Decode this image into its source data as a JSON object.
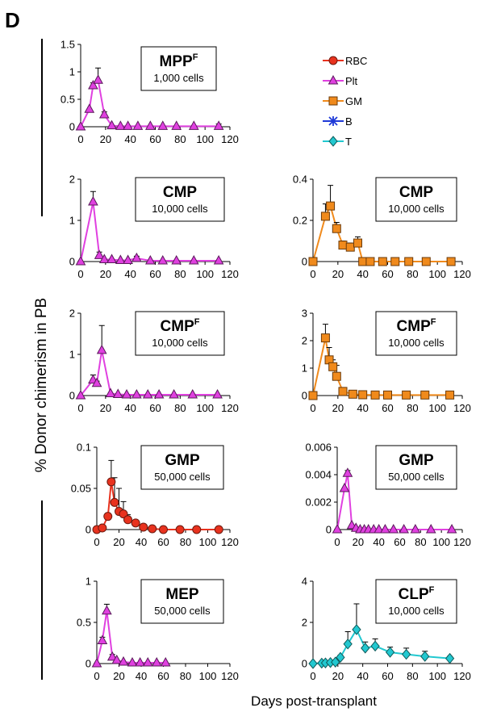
{
  "panel_label": "D",
  "ylabel": "% Donor chimerism in PB",
  "xlabel": "Days post-transplant",
  "legend": [
    {
      "name": "RBC",
      "color": "#e8321e",
      "marker": "circle"
    },
    {
      "name": "Plt",
      "color": "#e040e0",
      "marker": "triangle"
    },
    {
      "name": "GM",
      "color": "#f08a1c",
      "marker": "square"
    },
    {
      "name": "B",
      "color": "#1f3ad8",
      "marker": "star"
    },
    {
      "name": "T",
      "color": "#22c8d0",
      "marker": "diamond"
    }
  ],
  "chart_data": [
    {
      "type": "line",
      "box_title": "MPP",
      "box_sup": "F",
      "box_sub": "1,000 cells",
      "ylim": [
        0,
        1.5
      ],
      "yticks": [
        "0",
        "0.5",
        "1",
        "1.5"
      ],
      "xlim": [
        0,
        120
      ],
      "xticks": [
        0,
        20,
        40,
        60,
        80,
        100,
        120
      ],
      "series": [
        {
          "name": "Plt",
          "color": "#e040e0",
          "marker": "triangle",
          "x": [
            0,
            7,
            10,
            14,
            19,
            25,
            32,
            38,
            46,
            56,
            66,
            77,
            91,
            111
          ],
          "y": [
            0,
            0.32,
            0.75,
            0.85,
            0.22,
            0.02,
            0.01,
            0.01,
            0.01,
            0.01,
            0.01,
            0.01,
            0.01,
            0.01
          ],
          "err": [
            0,
            0,
            0.05,
            0.22,
            0.05,
            0,
            0,
            0,
            0,
            0,
            0,
            0,
            0,
            0.04
          ]
        }
      ]
    },
    {
      "type": "line",
      "box_title": "CMP",
      "box_sup": "",
      "box_sub": "10,000 cells",
      "ylim": [
        0,
        2
      ],
      "yticks": [
        "0",
        "1",
        "2"
      ],
      "xlim": [
        0,
        120
      ],
      "xticks": [
        0,
        20,
        40,
        60,
        80,
        100,
        120
      ],
      "series": [
        {
          "name": "Plt",
          "color": "#e040e0",
          "marker": "triangle",
          "x": [
            0,
            10,
            15,
            19,
            25,
            32,
            38,
            45,
            56,
            66,
            77,
            91,
            111
          ],
          "y": [
            0,
            1.45,
            0.15,
            0.05,
            0.05,
            0.03,
            0.03,
            0.08,
            0.02,
            0.02,
            0.02,
            0.02,
            0.02
          ],
          "err": [
            0,
            0.25,
            0.08,
            0,
            0,
            0,
            0,
            0.05,
            0,
            0,
            0,
            0,
            0
          ]
        }
      ]
    },
    {
      "type": "line",
      "box_title": "CMP",
      "box_sup": "",
      "box_sub": "10,000 cells",
      "ylim": [
        0,
        0.4
      ],
      "yticks": [
        "0",
        "0.2",
        "0.4"
      ],
      "xlim": [
        0,
        120
      ],
      "xticks": [
        0,
        20,
        40,
        60,
        80,
        100,
        120
      ],
      "series": [
        {
          "name": "GM",
          "color": "#f08a1c",
          "marker": "square",
          "x": [
            0,
            10,
            14,
            19,
            24,
            30,
            36,
            40,
            46,
            56,
            66,
            77,
            91,
            111
          ],
          "y": [
            0,
            0.22,
            0.27,
            0.16,
            0.08,
            0.07,
            0.09,
            0.0,
            0.0,
            0.0,
            0.0,
            0.0,
            0.0,
            0.0
          ],
          "err": [
            0,
            0.06,
            0.1,
            0.03,
            0.02,
            0.02,
            0.03,
            0,
            0,
            0,
            0,
            0,
            0,
            0
          ]
        }
      ]
    },
    {
      "type": "line",
      "box_title": "CMP",
      "box_sup": "F",
      "box_sub": "10,000 cells",
      "ylim": [
        0,
        2
      ],
      "yticks": [
        "0",
        "1",
        "2"
      ],
      "xlim": [
        0,
        120
      ],
      "xticks": [
        0,
        20,
        40,
        60,
        80,
        100,
        120
      ],
      "series": [
        {
          "name": "Plt",
          "color": "#e040e0",
          "marker": "triangle",
          "x": [
            0,
            10,
            13,
            17,
            24,
            30,
            37,
            45,
            54,
            63,
            75,
            90,
            110
          ],
          "y": [
            0,
            0.38,
            0.3,
            1.1,
            0.05,
            0.03,
            0.02,
            0.02,
            0.02,
            0.02,
            0.02,
            0.02,
            0.02
          ],
          "err": [
            0,
            0.12,
            0.05,
            0.6,
            0,
            0,
            0,
            0,
            0,
            0,
            0,
            0,
            0
          ]
        }
      ]
    },
    {
      "type": "line",
      "box_title": "CMP",
      "box_sup": "F",
      "box_sub": "10,000 cells",
      "ylim": [
        0,
        3
      ],
      "yticks": [
        "0",
        "1",
        "2",
        "3"
      ],
      "xlim": [
        0,
        120
      ],
      "xticks": [
        0,
        20,
        40,
        60,
        80,
        100,
        120
      ],
      "series": [
        {
          "name": "GM",
          "color": "#f08a1c",
          "marker": "square",
          "x": [
            0,
            10,
            13,
            16,
            19,
            24,
            32,
            40,
            50,
            60,
            75,
            90,
            110
          ],
          "y": [
            0,
            2.1,
            1.3,
            1.05,
            0.7,
            0.15,
            0.05,
            0.03,
            0.02,
            0.02,
            0.02,
            0.02,
            0.02
          ],
          "err": [
            0,
            0.5,
            0.45,
            0.25,
            0.4,
            0.1,
            0,
            0,
            0,
            0,
            0,
            0,
            0
          ]
        }
      ]
    },
    {
      "type": "line",
      "box_title": "GMP",
      "box_sup": "",
      "box_sub": "50,000 cells",
      "ylim": [
        0,
        0.1
      ],
      "yticks": [
        "0",
        "0.05",
        "0.1"
      ],
      "xlim": [
        0,
        120
      ],
      "xticks": [
        0,
        20,
        40,
        60,
        80,
        100,
        120
      ],
      "series": [
        {
          "name": "RBC",
          "color": "#e8321e",
          "marker": "circle",
          "x": [
            0,
            5,
            10,
            13,
            16,
            20,
            24,
            28,
            35,
            42,
            50,
            60,
            75,
            90,
            110
          ],
          "y": [
            0,
            0.002,
            0.016,
            0.058,
            0.033,
            0.022,
            0.019,
            0.012,
            0.008,
            0.003,
            0.001,
            0.0,
            0.0,
            0.0,
            0.0
          ],
          "err": [
            0,
            0,
            0.003,
            0.026,
            0.03,
            0.028,
            0.015,
            0.006,
            0.003,
            0.002,
            0,
            0,
            0,
            0,
            0
          ]
        }
      ]
    },
    {
      "type": "line",
      "box_title": "GMP",
      "box_sup": "",
      "box_sub": "50,000 cells",
      "ylim": [
        0,
        0.006
      ],
      "yticks": [
        "0",
        "0.002",
        "0.004",
        "0.006"
      ],
      "xlim": [
        0,
        120
      ],
      "xticks": [
        0,
        20,
        40,
        60,
        80,
        100,
        120
      ],
      "series": [
        {
          "name": "Plt",
          "color": "#e040e0",
          "marker": "triangle",
          "x": [
            0,
            7,
            10,
            14,
            18,
            22,
            26,
            30,
            35,
            40,
            46,
            54,
            64,
            75,
            90,
            110
          ],
          "y": [
            0,
            0.003,
            0.0041,
            0.0003,
            0.0001,
            0.0,
            0.0,
            0.0,
            0.0,
            0.0,
            0.0,
            0.0,
            0.0,
            0.0,
            0.0,
            0.0
          ],
          "err": [
            0,
            0,
            0.0002,
            0,
            0,
            0,
            0,
            0,
            0,
            0,
            0,
            0,
            0,
            0,
            0,
            0
          ]
        }
      ]
    },
    {
      "type": "line",
      "box_title": "MEP",
      "box_sup": "",
      "box_sub": "50,000 cells",
      "ylim": [
        0,
        1
      ],
      "yticks": [
        "0",
        "0.5",
        "1"
      ],
      "xlim": [
        0,
        120
      ],
      "xticks": [
        0,
        20,
        40,
        60,
        80,
        100,
        120
      ],
      "series": [
        {
          "name": "Plt",
          "color": "#e040e0",
          "marker": "triangle",
          "x": [
            0,
            5,
            9,
            14,
            18,
            24,
            32,
            39,
            46,
            54,
            62
          ],
          "y": [
            0,
            0.28,
            0.64,
            0.08,
            0.04,
            0.02,
            0.01,
            0.01,
            0.01,
            0.01,
            0.01
          ],
          "err": [
            0,
            0.04,
            0.08,
            0.03,
            0,
            0,
            0,
            0,
            0,
            0,
            0
          ]
        }
      ]
    },
    {
      "type": "line",
      "box_title": "CLP",
      "box_sup": "F",
      "box_sub": "10,000 cells",
      "ylim": [
        0,
        4
      ],
      "yticks": [
        "0",
        "2",
        "4"
      ],
      "xlim": [
        0,
        120
      ],
      "xticks": [
        0,
        20,
        40,
        60,
        80,
        100,
        120
      ],
      "series": [
        {
          "name": "T",
          "color": "#22c8d0",
          "marker": "diamond",
          "x": [
            0,
            7,
            10,
            14,
            18,
            22,
            28,
            35,
            42,
            50,
            62,
            75,
            90,
            110
          ],
          "y": [
            0,
            0.02,
            0.03,
            0.05,
            0.07,
            0.3,
            0.95,
            1.65,
            0.75,
            0.85,
            0.55,
            0.45,
            0.35,
            0.25
          ],
          "err": [
            0,
            0,
            0,
            0,
            0,
            0.1,
            0.6,
            1.25,
            0.3,
            0.35,
            0.25,
            0.3,
            0.25,
            0.1
          ]
        }
      ]
    }
  ]
}
